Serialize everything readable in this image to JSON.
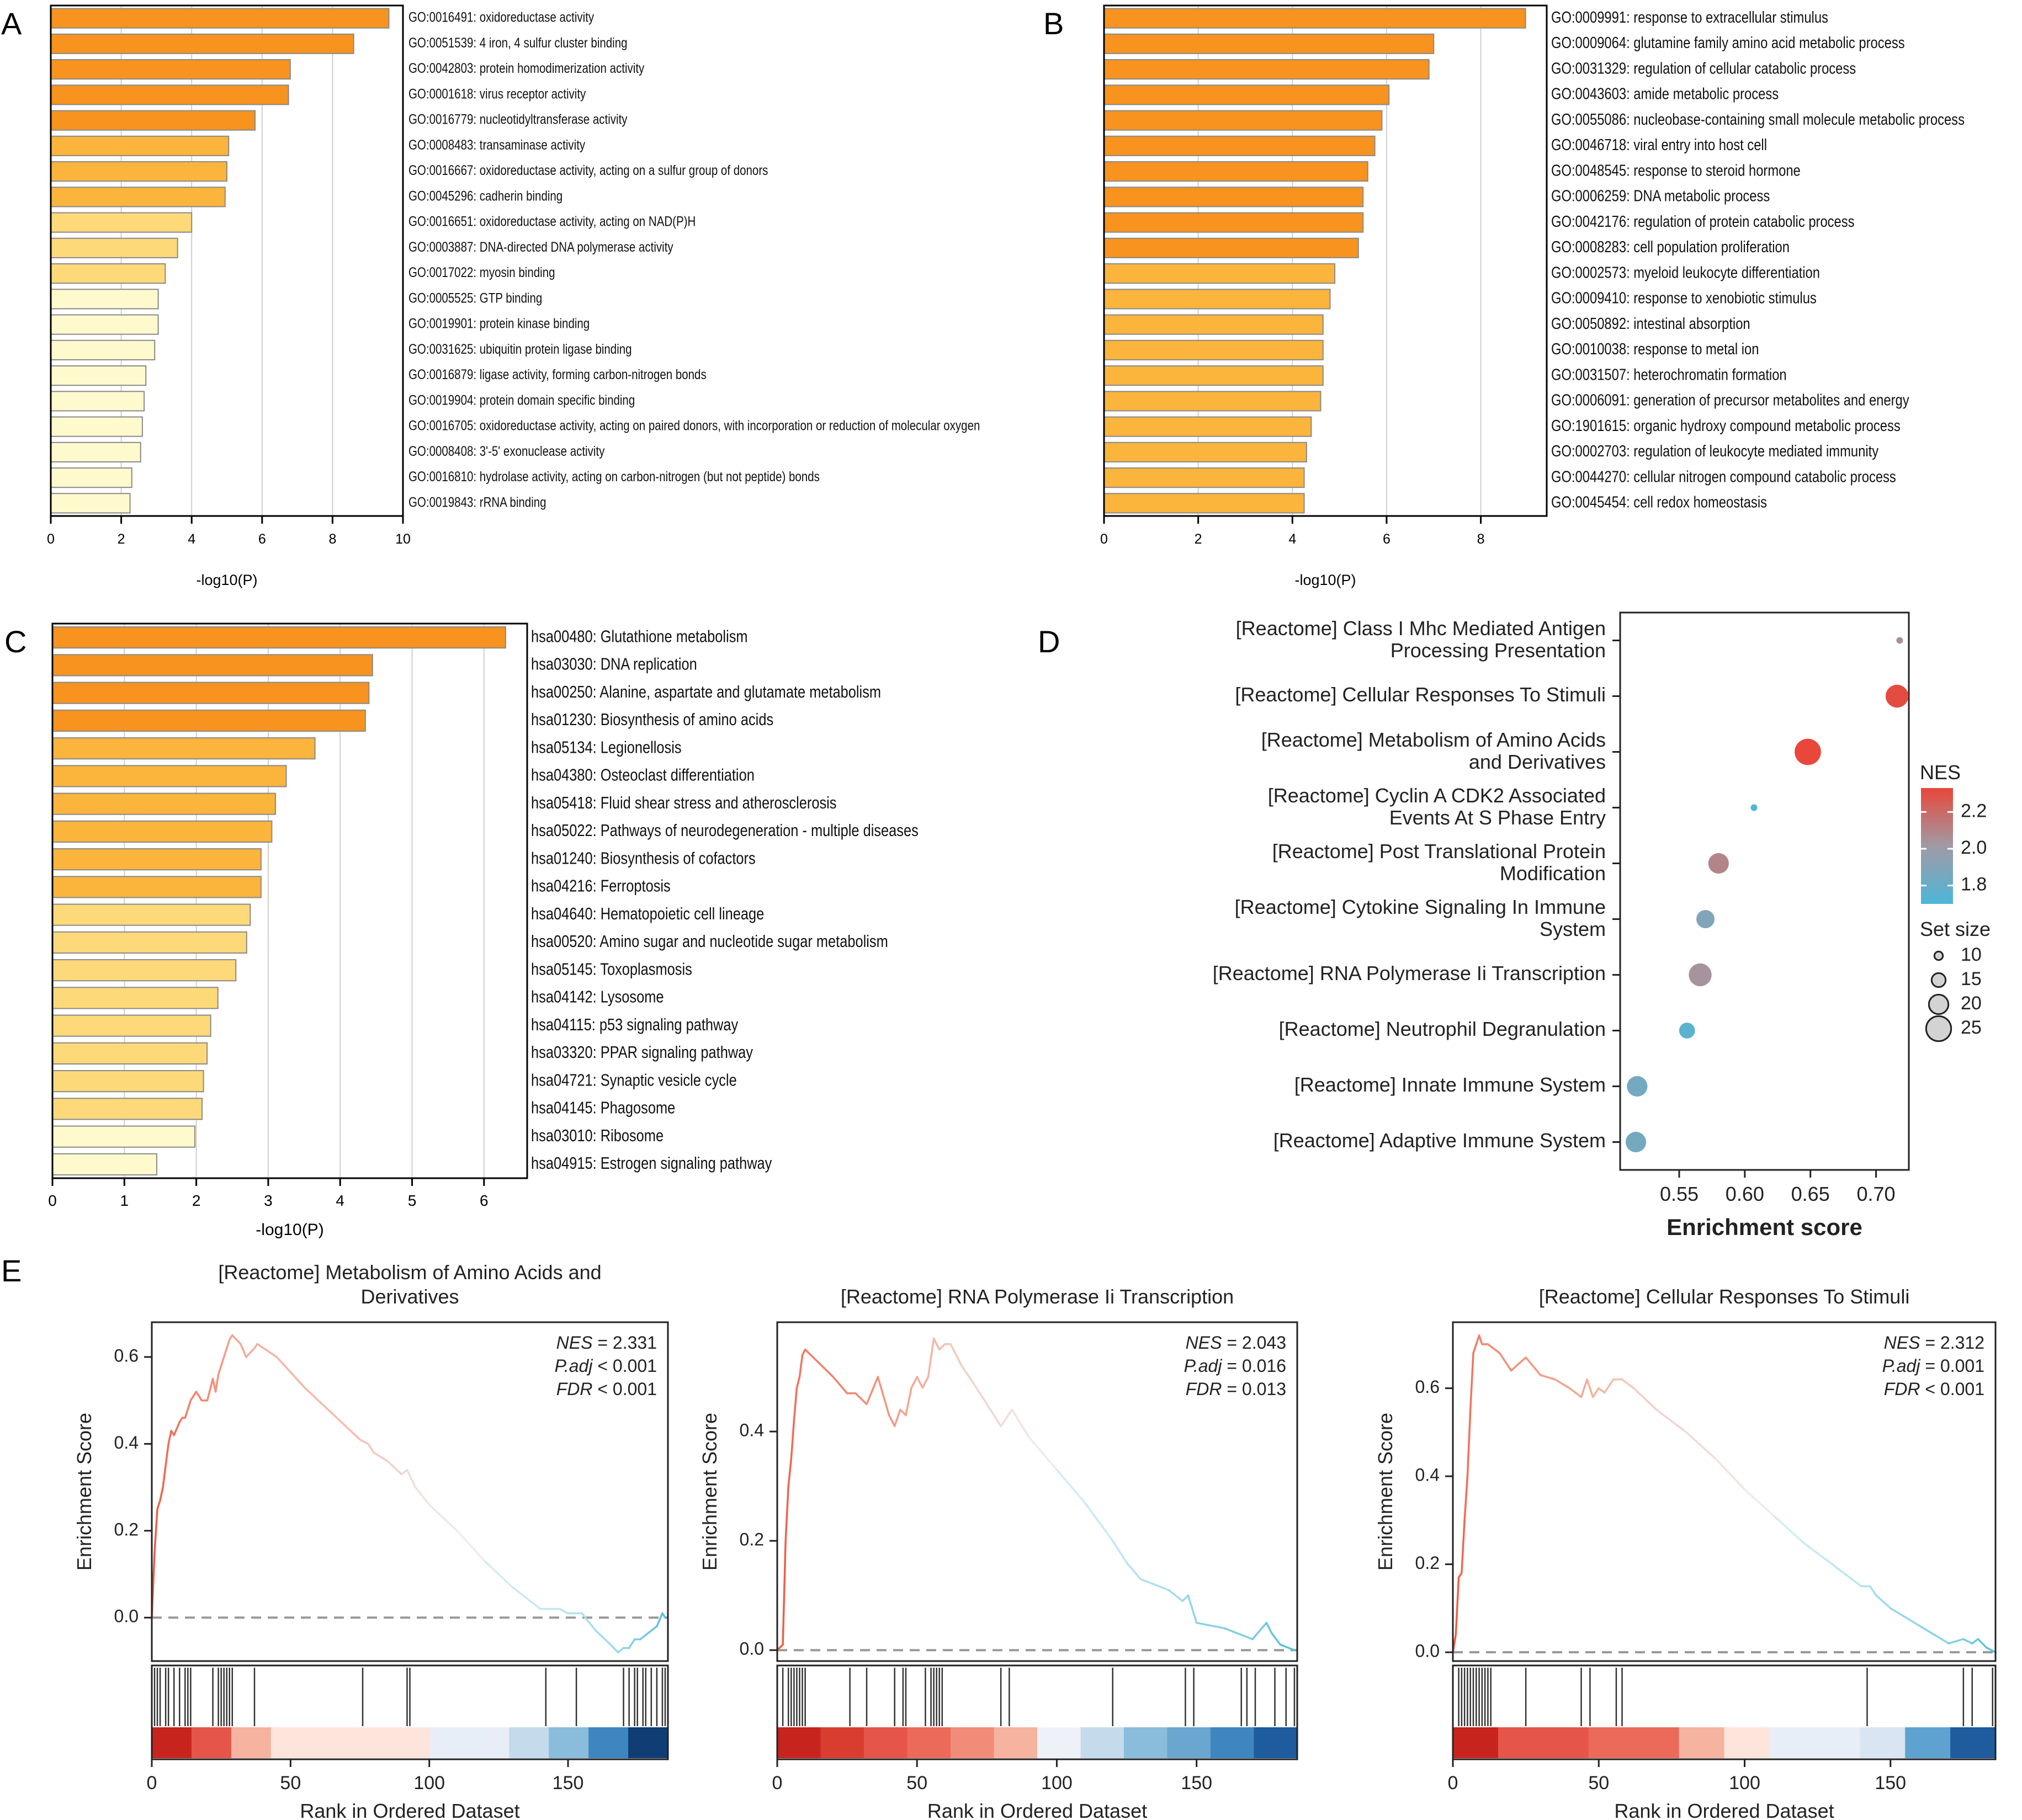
{
  "panel_labels": [
    "A",
    "B",
    "C",
    "D",
    "E"
  ],
  "colors": {
    "bar_dark": "#f7931e",
    "bar_mid": "#fbb43c",
    "bar_light": "#fdd97a",
    "bar_pale": "#fffacd",
    "bar_edge": "#8a8a8a",
    "nes_high": "#e8473a",
    "nes_mid": "#a09aa5",
    "nes_low": "#4db6d8",
    "curve_start": "#ee5a42",
    "curve_end": "#5bc0de"
  },
  "chart_data": [
    {
      "panel": "A",
      "type": "bar",
      "orientation": "horizontal",
      "xlabel": "-log10(P)",
      "xlim": [
        0,
        10
      ],
      "xticks": [
        "0",
        "2",
        "4",
        "6",
        "8",
        "10"
      ],
      "categories": [
        "GO:0016491: oxidoreductase activity",
        "GO:0051539: 4 iron, 4 sulfur cluster binding",
        "GO:0042803: protein homodimerization activity",
        "GO:0001618: virus receptor activity",
        "GO:0016779: nucleotidyltransferase activity",
        "GO:0008483: transaminase activity",
        "GO:0016667: oxidoreductase activity, acting on a sulfur group of donors",
        "GO:0045296: cadherin binding",
        "GO:0016651: oxidoreductase activity, acting on NAD(P)H",
        "GO:0003887: DNA-directed DNA polymerase activity",
        "GO:0017022: myosin binding",
        "GO:0005525: GTP binding",
        "GO:0019901: protein kinase binding",
        "GO:0031625: ubiquitin protein ligase binding",
        "GO:0016879: ligase activity, forming carbon-nitrogen bonds",
        "GO:0019904: protein domain specific binding",
        "GO:0016705: oxidoreductase activity, acting on paired donors, with incorporation or reduction of molecular oxygen",
        "GO:0008408: 3'-5' exonuclease activity",
        "GO:0016810: hydrolase activity, acting on carbon-nitrogen (but not peptide) bonds",
        "GO:0019843: rRNA binding"
      ],
      "values": [
        9.6,
        8.6,
        6.8,
        6.75,
        5.8,
        5.05,
        5.0,
        4.95,
        4.0,
        3.6,
        3.25,
        3.05,
        3.05,
        2.95,
        2.7,
        2.65,
        2.6,
        2.55,
        2.3,
        2.25
      ]
    },
    {
      "panel": "B",
      "type": "bar",
      "orientation": "horizontal",
      "xlabel": "-log10(P)",
      "xlim": [
        0,
        9.4
      ],
      "xticks": [
        "0",
        "2",
        "4",
        "6",
        "8"
      ],
      "categories": [
        "GO:0009991: response to extracellular stimulus",
        "GO:0009064: glutamine family amino acid metabolic process",
        "GO:0031329: regulation of cellular catabolic process",
        "GO:0043603: amide metabolic process",
        "GO:0055086: nucleobase-containing small molecule metabolic process",
        "GO:0046718: viral entry into host cell",
        "GO:0048545: response to steroid hormone",
        "GO:0006259: DNA metabolic process",
        "GO:0042176: regulation of protein catabolic process",
        "GO:0008283: cell population proliferation",
        "GO:0002573: myeloid leukocyte differentiation",
        "GO:0009410: response to xenobiotic stimulus",
        "GO:0050892: intestinal absorption",
        "GO:0010038: response to metal ion",
        "GO:0031507: heterochromatin formation",
        "GO:0006091: generation of precursor metabolites and energy",
        "GO:1901615: organic hydroxy compound metabolic process",
        "GO:0002703: regulation of leukocyte mediated immunity",
        "GO:0044270: cellular nitrogen compound catabolic process",
        "GO:0045454: cell redox homeostasis"
      ],
      "values": [
        8.95,
        7.0,
        6.9,
        6.05,
        5.9,
        5.75,
        5.6,
        5.5,
        5.5,
        5.4,
        4.9,
        4.8,
        4.65,
        4.65,
        4.65,
        4.6,
        4.4,
        4.3,
        4.25,
        4.25
      ]
    },
    {
      "panel": "C",
      "type": "bar",
      "orientation": "horizontal",
      "xlabel": "-log10(P)",
      "xlim": [
        0,
        6.6
      ],
      "xticks": [
        "0",
        "1",
        "2",
        "3",
        "4",
        "5",
        "6"
      ],
      "categories": [
        "hsa00480: Glutathione metabolism",
        "hsa03030: DNA replication",
        "hsa00250: Alanine, aspartate and glutamate metabolism",
        "hsa01230: Biosynthesis of amino acids",
        "hsa05134: Legionellosis",
        "hsa04380: Osteoclast differentiation",
        "hsa05418: Fluid shear stress and atherosclerosis",
        "hsa05022: Pathways of neurodegeneration - multiple diseases",
        "hsa01240: Biosynthesis of cofactors",
        "hsa04216: Ferroptosis",
        "hsa04640: Hematopoietic cell lineage",
        "hsa00520: Amino sugar and nucleotide sugar metabolism",
        "hsa05145: Toxoplasmosis",
        "hsa04142: Lysosome",
        "hsa04115: p53 signaling pathway",
        "hsa03320: PPAR signaling pathway",
        "hsa04721: Synaptic vesicle cycle",
        "hsa04145: Phagosome",
        "hsa03010: Ribosome",
        "hsa04915: Estrogen signaling pathway"
      ],
      "values": [
        6.3,
        4.45,
        4.4,
        4.35,
        3.65,
        3.25,
        3.1,
        3.05,
        2.9,
        2.9,
        2.75,
        2.7,
        2.55,
        2.3,
        2.2,
        2.15,
        2.1,
        2.08,
        1.98,
        1.45
      ]
    },
    {
      "panel": "D",
      "type": "scatter",
      "xlabel": "Enrichment score",
      "xlim": [
        0.505,
        0.725
      ],
      "xticks": [
        "0.55",
        "0.60",
        "0.65",
        "0.70"
      ],
      "xtick_values": [
        0.55,
        0.6,
        0.65,
        0.7
      ],
      "categories": [
        "[Reactome] Class I Mhc Mediated Antigen Processing Presentation",
        "[Reactome] Cellular Responses To Stimuli",
        "[Reactome] Metabolism of Amino Acids and Derivatives",
        "[Reactome] Cyclin A CDK2 Associated Events At S Phase Entry",
        "[Reactome] Post Translational Protein Modification",
        "[Reactome] Cytokine Signaling In Immune System",
        "[Reactome] RNA Polymerase Ii Transcription",
        "[Reactome] Neutrophil Degranulation",
        "[Reactome] Innate Immune System",
        "[Reactome] Adaptive Immune System"
      ],
      "label_lines": [
        [
          "[Reactome] Class I Mhc Mediated Antigen",
          "Processing Presentation"
        ],
        [
          "[Reactome] Cellular Responses To Stimuli"
        ],
        [
          "[Reactome] Metabolism of Amino Acids",
          "and Derivatives"
        ],
        [
          "[Reactome] Cyclin A CDK2 Associated",
          "Events At S Phase Entry"
        ],
        [
          "[Reactome] Post Translational Protein",
          "Modification"
        ],
        [
          "[Reactome] Cytokine Signaling In Immune",
          "System"
        ],
        [
          "[Reactome] RNA Polymerase Ii Transcription"
        ],
        [
          "[Reactome] Neutrophil Degranulation"
        ],
        [
          "[Reactome] Innate Immune System"
        ],
        [
          "[Reactome] Adaptive Immune System"
        ]
      ],
      "x": [
        0.718,
        0.716,
        0.648,
        0.607,
        0.58,
        0.57,
        0.566,
        0.556,
        0.518,
        0.517
      ],
      "nes": [
        2.05,
        2.31,
        2.33,
        1.7,
        2.1,
        1.9,
        2.04,
        1.75,
        1.85,
        1.85
      ],
      "set_size": [
        8,
        22,
        25,
        8,
        20,
        18,
        22,
        16,
        20,
        20
      ],
      "legend": {
        "color_title": "NES",
        "color_ticks": [
          "2.2",
          "2.0",
          "1.8"
        ],
        "nes_range": [
          1.7,
          2.33
        ],
        "size_title": "Set size",
        "size_ticks": [
          "10",
          "15",
          "20",
          "25"
        ]
      }
    },
    {
      "panel": "E1",
      "type": "line",
      "title": "[Reactome] Metabolism of Amino Acids and Derivatives",
      "title_lines": [
        "[Reactome] Metabolism of Amino Acids and",
        "Derivatives"
      ],
      "ylabel": "Enrichment Score",
      "xlabel": "Rank in Ordered Dataset",
      "xlim": [
        0,
        186
      ],
      "ylim": [
        -0.1,
        0.68
      ],
      "yticks": [
        0.0,
        0.2,
        0.4,
        0.6
      ],
      "ytick_labels": [
        "0.0",
        "0.2",
        "0.4",
        "0.6"
      ],
      "xticks": [
        0,
        50,
        100,
        150
      ],
      "xtick_labels": [
        "0",
        "50",
        "100",
        "150"
      ],
      "stats": {
        "nes_label": "NES",
        "nes": "2.331",
        "padj_label": "P.adj",
        "padj_op": "<",
        "padj": "0.001",
        "fdr_label": "FDR",
        "fdr_op": "<",
        "fdr": "0.001"
      },
      "x": [
        0,
        1,
        2,
        3,
        4,
        5,
        6,
        7,
        8,
        10,
        11,
        12,
        14,
        16,
        18,
        20,
        22,
        23,
        24,
        25,
        26,
        27,
        28,
        29,
        32,
        34,
        37,
        38,
        45,
        55,
        65,
        75,
        78,
        80,
        85,
        90,
        92,
        95,
        100,
        110,
        120,
        130,
        140,
        147,
        150,
        155,
        160,
        165,
        168,
        170,
        172,
        174,
        176,
        178,
        180,
        182,
        184,
        185
      ],
      "y": [
        0.0,
        0.15,
        0.25,
        0.27,
        0.3,
        0.35,
        0.4,
        0.43,
        0.42,
        0.45,
        0.46,
        0.46,
        0.5,
        0.52,
        0.5,
        0.5,
        0.55,
        0.52,
        0.56,
        0.58,
        0.6,
        0.62,
        0.64,
        0.65,
        0.63,
        0.6,
        0.62,
        0.63,
        0.6,
        0.53,
        0.47,
        0.41,
        0.4,
        0.38,
        0.36,
        0.33,
        0.34,
        0.3,
        0.26,
        0.2,
        0.13,
        0.07,
        0.02,
        0.02,
        0.01,
        0.01,
        -0.03,
        -0.06,
        -0.08,
        -0.07,
        -0.07,
        -0.05,
        -0.05,
        -0.04,
        -0.03,
        -0.02,
        0.01,
        0.0
      ],
      "hits": [
        1,
        2,
        3,
        5,
        6,
        8,
        10,
        12,
        13,
        14,
        22,
        24,
        25,
        26,
        27,
        28,
        29,
        37,
        76,
        92,
        93,
        142,
        153,
        170,
        172,
        174,
        175,
        177,
        178,
        180,
        182,
        184,
        185
      ],
      "rank_colors": [
        "#c8241e",
        "#e6554a",
        "#f5b3a0",
        "#fde5dc",
        "#fde5dc",
        "#fde5dc",
        "#fde5dc",
        "#e8eef7",
        "#e8eef7",
        "#c5dbec",
        "#8abcdb",
        "#3d86bf",
        "#0f3d74"
      ]
    },
    {
      "panel": "E2",
      "type": "line",
      "title": "[Reactome] RNA Polymerase Ii Transcription",
      "title_lines": [
        "[Reactome] RNA Polymerase Ii Transcription"
      ],
      "ylabel": "Enrichment Score",
      "xlabel": "Rank in Ordered Dataset",
      "xlim": [
        0,
        186
      ],
      "ylim": [
        -0.02,
        0.6
      ],
      "yticks": [
        0.0,
        0.2,
        0.4
      ],
      "ytick_labels": [
        "0.0",
        "0.2",
        "0.4"
      ],
      "xticks": [
        0,
        50,
        100,
        150
      ],
      "xtick_labels": [
        "0",
        "50",
        "100",
        "150"
      ],
      "stats": {
        "nes_label": "NES",
        "nes": "2.043",
        "padj_label": "P.adj",
        "padj_op": "=",
        "padj": "0.016",
        "fdr_label": "FDR",
        "fdr_op": "=",
        "fdr": "0.013"
      },
      "x": [
        0,
        2,
        3,
        4,
        5,
        6,
        7,
        8,
        9,
        10,
        20,
        25,
        28,
        32,
        36,
        40,
        42,
        44,
        46,
        48,
        50,
        52,
        54,
        56,
        58,
        60,
        62,
        66,
        70,
        80,
        84,
        90,
        100,
        110,
        120,
        125,
        130,
        140,
        145,
        147,
        150,
        160,
        170,
        175,
        177,
        180,
        185
      ],
      "y": [
        0.0,
        0.01,
        0.2,
        0.3,
        0.35,
        0.42,
        0.48,
        0.5,
        0.54,
        0.55,
        0.5,
        0.47,
        0.47,
        0.45,
        0.5,
        0.43,
        0.41,
        0.44,
        0.43,
        0.48,
        0.5,
        0.48,
        0.5,
        0.57,
        0.55,
        0.56,
        0.56,
        0.52,
        0.49,
        0.41,
        0.44,
        0.39,
        0.33,
        0.27,
        0.2,
        0.16,
        0.13,
        0.11,
        0.09,
        0.1,
        0.05,
        0.04,
        0.02,
        0.05,
        0.03,
        0.01,
        0.0
      ],
      "hits": [
        2,
        4,
        5,
        6,
        7,
        8,
        9,
        10,
        26,
        32,
        42,
        45,
        46,
        53,
        55,
        56,
        57,
        58,
        59,
        80,
        83,
        120,
        146,
        149,
        166,
        168,
        171,
        178,
        182,
        185
      ],
      "rank_colors": [
        "#c8241e",
        "#d83d30",
        "#e6554a",
        "#ec6a5a",
        "#f08c78",
        "#f5b3a0",
        "#eef2f8",
        "#c5dbec",
        "#8abcdb",
        "#6aa6cf",
        "#3d86bf",
        "#1f5c9e"
      ]
    },
    {
      "panel": "E3",
      "type": "line",
      "title": "[Reactome] Cellular Responses To Stimuli",
      "title_lines": [
        "[Reactome] Cellular Responses To Stimuli"
      ],
      "ylabel": "Enrichment Score",
      "xlabel": "Rank in Ordered Dataset",
      "xlim": [
        0,
        186
      ],
      "ylim": [
        -0.02,
        0.75
      ],
      "yticks": [
        0.0,
        0.2,
        0.4,
        0.6
      ],
      "ytick_labels": [
        "0.0",
        "0.2",
        "0.4",
        "0.6"
      ],
      "xticks": [
        0,
        50,
        100,
        150
      ],
      "xtick_labels": [
        "0",
        "50",
        "100",
        "150"
      ],
      "stats": {
        "nes_label": "NES",
        "nes": "2.312",
        "padj_label": "P.adj",
        "padj_op": "=",
        "padj": "0.001",
        "fdr_label": "FDR",
        "fdr_op": "<",
        "fdr": "0.001"
      },
      "x": [
        0,
        1,
        2,
        3,
        4,
        5,
        6,
        7,
        8,
        9,
        10,
        12,
        16,
        20,
        25,
        30,
        35,
        40,
        44,
        46,
        48,
        50,
        52,
        55,
        58,
        62,
        70,
        80,
        90,
        100,
        110,
        120,
        130,
        140,
        143,
        145,
        150,
        160,
        170,
        175,
        178,
        180,
        183,
        186
      ],
      "y": [
        0.0,
        0.04,
        0.17,
        0.18,
        0.3,
        0.4,
        0.55,
        0.68,
        0.7,
        0.72,
        0.7,
        0.7,
        0.68,
        0.64,
        0.67,
        0.63,
        0.62,
        0.6,
        0.58,
        0.62,
        0.58,
        0.6,
        0.59,
        0.62,
        0.62,
        0.6,
        0.55,
        0.5,
        0.44,
        0.37,
        0.31,
        0.25,
        0.2,
        0.15,
        0.15,
        0.13,
        0.1,
        0.06,
        0.02,
        0.03,
        0.02,
        0.03,
        0.01,
        0.0
      ],
      "hits": [
        2,
        3,
        4,
        5,
        6,
        7,
        8,
        9,
        10,
        11,
        12,
        13,
        25,
        44,
        47,
        56,
        58,
        142,
        175,
        178,
        185
      ],
      "rank_colors": [
        "#c8241e",
        "#e6554a",
        "#e6554a",
        "#ec6a5a",
        "#ec6a5a",
        "#f5b3a0",
        "#fde5dc",
        "#e8eef7",
        "#e8eef7",
        "#d9e5f2",
        "#5ea3d0",
        "#1f5c9e"
      ]
    }
  ]
}
